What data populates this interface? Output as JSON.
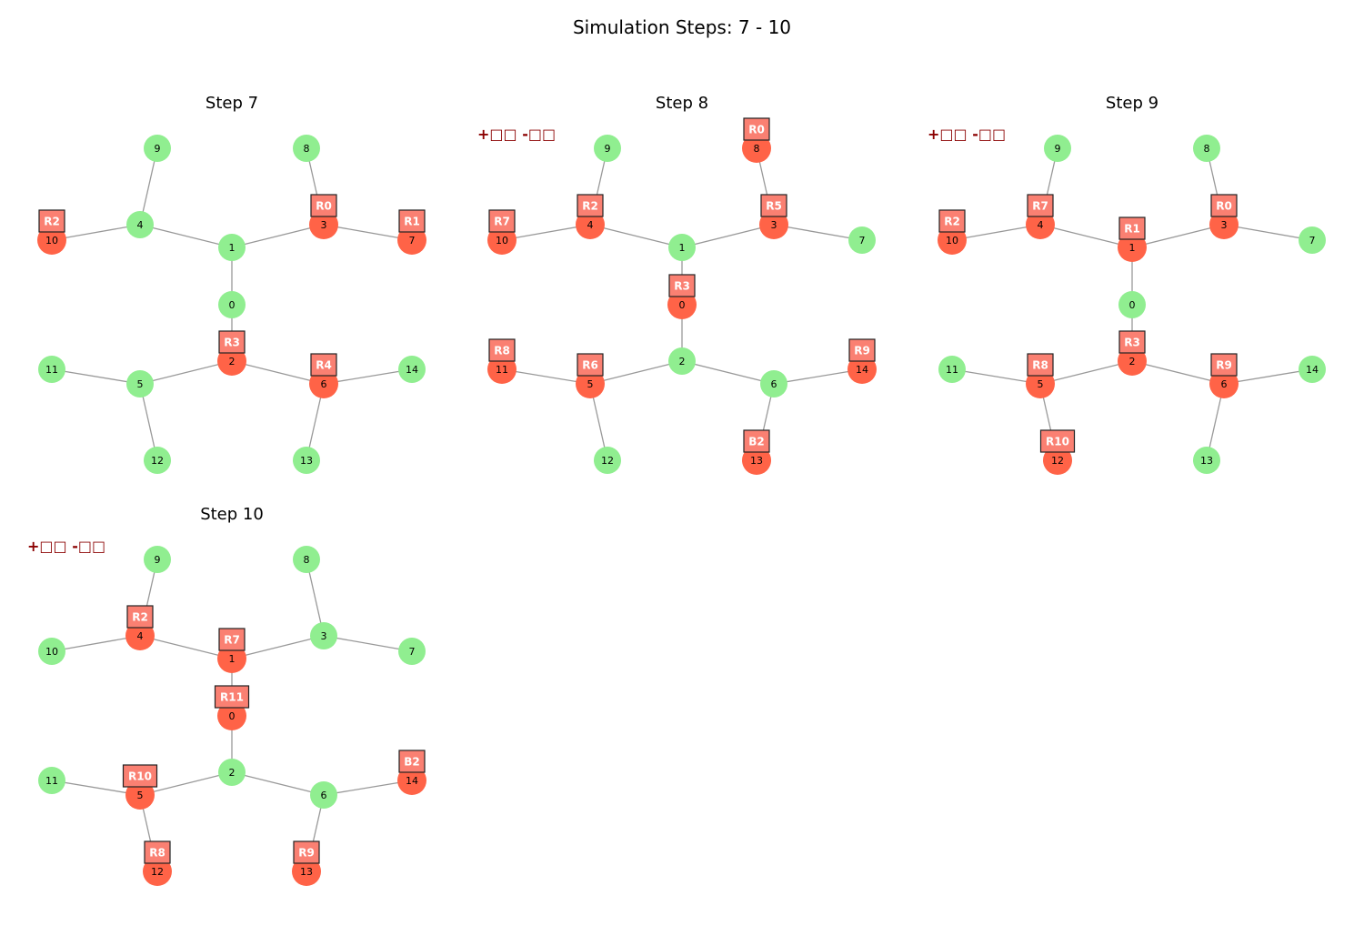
{
  "title": "Simulation Steps: 7 - 10",
  "colors": {
    "free_node": "#90ee90",
    "occupied_node": "#ff6347",
    "badge_fill": "#fa8072",
    "edge": "#999999",
    "annotation": "#8b0000"
  },
  "graph": {
    "edges": [
      [
        0,
        1
      ],
      [
        0,
        2
      ],
      [
        1,
        3
      ],
      [
        1,
        4
      ],
      [
        2,
        5
      ],
      [
        2,
        6
      ],
      [
        3,
        7
      ],
      [
        3,
        8
      ],
      [
        4,
        9
      ],
      [
        4,
        10
      ],
      [
        5,
        11
      ],
      [
        5,
        12
      ],
      [
        6,
        13
      ],
      [
        6,
        14
      ]
    ]
  },
  "steps": [
    {
      "title": "Step 7",
      "annotation": "",
      "occupied": [
        2,
        3,
        6,
        7,
        10
      ],
      "badges": [
        {
          "node": 3,
          "label": "R0"
        },
        {
          "node": 7,
          "label": "R1"
        },
        {
          "node": 10,
          "label": "R2"
        },
        {
          "node": 2,
          "label": "R3"
        },
        {
          "node": 6,
          "label": "R4"
        }
      ]
    },
    {
      "title": "Step 8",
      "annotation": "+□□ -□□",
      "occupied": [
        0,
        3,
        4,
        5,
        8,
        10,
        11,
        13,
        14
      ],
      "badges": [
        {
          "node": 8,
          "label": "R0"
        },
        {
          "node": 4,
          "label": "R2"
        },
        {
          "node": 3,
          "label": "R5"
        },
        {
          "node": 10,
          "label": "R7"
        },
        {
          "node": 0,
          "label": "R3"
        },
        {
          "node": 11,
          "label": "R8"
        },
        {
          "node": 5,
          "label": "R6"
        },
        {
          "node": 14,
          "label": "R9"
        },
        {
          "node": 13,
          "label": "B2"
        }
      ]
    },
    {
      "title": "Step 9",
      "annotation": "+□□ -□□",
      "occupied": [
        1,
        2,
        3,
        4,
        5,
        6,
        10,
        12
      ],
      "badges": [
        {
          "node": 10,
          "label": "R2"
        },
        {
          "node": 4,
          "label": "R7"
        },
        {
          "node": 1,
          "label": "R1"
        },
        {
          "node": 3,
          "label": "R0"
        },
        {
          "node": 2,
          "label": "R3"
        },
        {
          "node": 5,
          "label": "R8"
        },
        {
          "node": 6,
          "label": "R9"
        },
        {
          "node": 12,
          "label": "R10"
        }
      ]
    },
    {
      "title": "Step 10",
      "annotation": "+□□ -□□",
      "occupied": [
        0,
        1,
        4,
        5,
        12,
        13,
        14
      ],
      "badges": [
        {
          "node": 4,
          "label": "R2"
        },
        {
          "node": 1,
          "label": "R7"
        },
        {
          "node": 0,
          "label": "R11"
        },
        {
          "node": 5,
          "label": "R10"
        },
        {
          "node": 14,
          "label": "B2"
        },
        {
          "node": 12,
          "label": "R8"
        },
        {
          "node": 13,
          "label": "R9"
        }
      ]
    }
  ]
}
